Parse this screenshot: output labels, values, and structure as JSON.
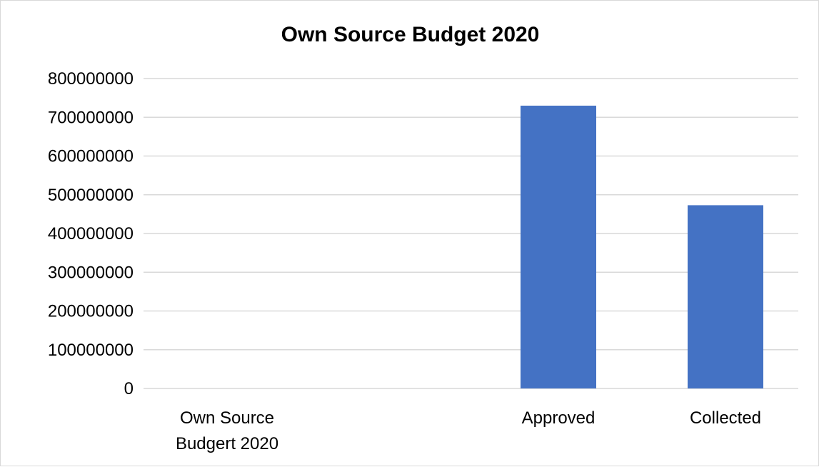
{
  "chart_data": {
    "type": "bar",
    "title": "Own Source Budget 2020",
    "xlabel": "",
    "ylabel": "",
    "categories": [
      "Own Source Budgert 2020",
      "Approved",
      "Collected"
    ],
    "category_lines": [
      [
        "Own Source",
        "Budgert 2020"
      ],
      [
        "Approved"
      ],
      [
        "Collected"
      ]
    ],
    "values": [
      0,
      730000000,
      473000000
    ],
    "ylim": [
      0,
      800000000
    ],
    "yticks": [
      "0",
      "100000000",
      "200000000",
      "300000000",
      "400000000",
      "500000000",
      "600000000",
      "700000000",
      "800000000"
    ],
    "grid": true,
    "legend": "none",
    "bar_color": "#4472c4",
    "grid_color": "#d9d9d9"
  }
}
